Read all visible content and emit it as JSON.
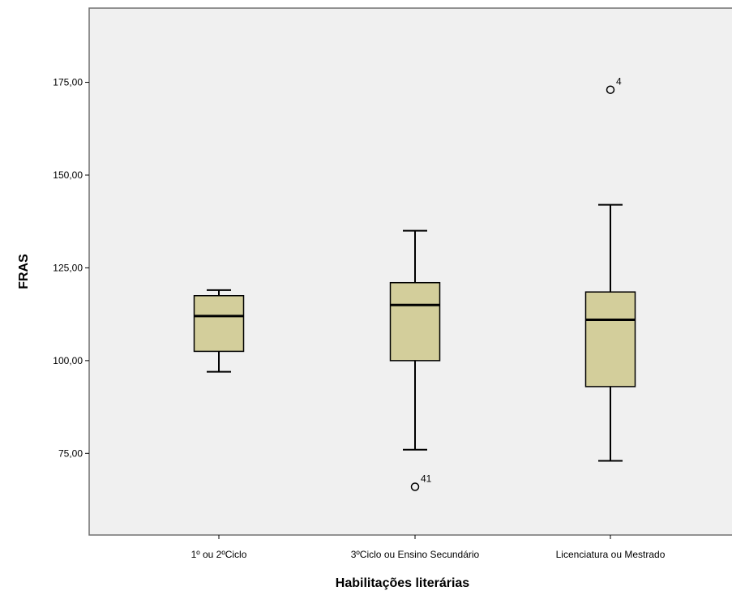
{
  "chart_data": {
    "type": "boxplot",
    "xlabel": "Habilitações literárias",
    "ylabel": "FRAS",
    "ylim": [
      53,
      195
    ],
    "yticks": [
      75,
      100,
      125,
      150,
      175
    ],
    "ytick_labels": [
      "75,00",
      "100,00",
      "125,00",
      "150,00",
      "175,00"
    ],
    "categories": [
      "1º ou 2ºCiclo",
      "3ºCiclo ou Ensino Secundário",
      "Licenciatura ou Mestrado"
    ],
    "boxes": [
      {
        "whisker_low": 97,
        "q1": 102.5,
        "median": 112,
        "q3": 117.5,
        "whisker_high": 119,
        "outliers": []
      },
      {
        "whisker_low": 76,
        "q1": 100,
        "median": 115,
        "q3": 121,
        "whisker_high": 135,
        "outliers": [
          {
            "value": 66,
            "label": "41"
          }
        ]
      },
      {
        "whisker_low": 73,
        "q1": 93,
        "median": 111,
        "q3": 118.5,
        "whisker_high": 142,
        "outliers": [
          {
            "value": 173,
            "label": "4"
          }
        ]
      }
    ],
    "colors": {
      "plot_background": "#f0f0f0",
      "box_fill": "#d3ce9b",
      "stroke": "#000000",
      "frame": "#707070"
    },
    "grid": false,
    "legend": "none"
  }
}
